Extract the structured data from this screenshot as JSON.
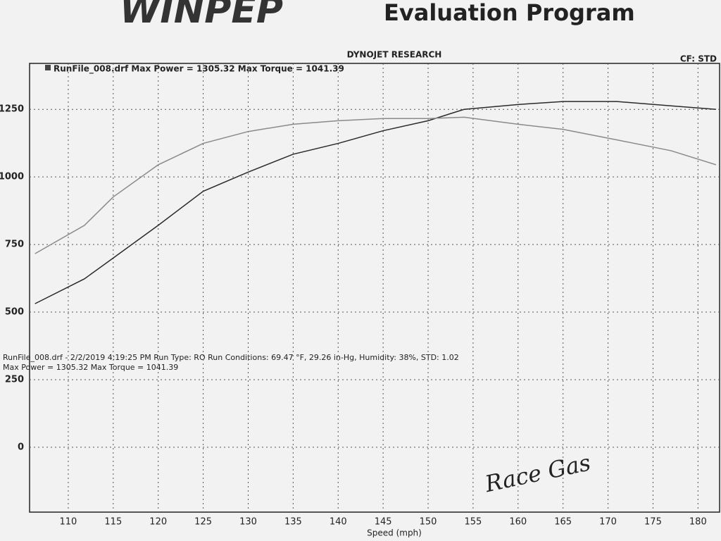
{
  "chart_data": {
    "type": "line",
    "logo": "WINPEP",
    "title": "Evaluation Program",
    "subtitle": "DYNOJET RESEARCH",
    "correction": "CF: STD",
    "legend_text": "RunFile_008.drf Max Power = 1305.32    Max Torque = 1041.39",
    "run_info": [
      "RunFile_008.drf - 2/2/2019 4:19:25 PM  Run Type: RO  Run Conditions: 69.47 °F, 29.26 in-Hg,  Humidity:  38%, STD: 1.02",
      "Max Power = 1305.32  Max Torque = 1041.39"
    ],
    "x_label": "Speed (mph)",
    "annotation": "Race Gas",
    "x": [
      106.3,
      111.8,
      115,
      120,
      125,
      130,
      135,
      140,
      145,
      150,
      154,
      160,
      165,
      171,
      177,
      182
    ],
    "series": [
      {
        "color": "#2a2a2a",
        "values": [
          531,
          623,
          700,
          821,
          947,
          1018,
          1084,
          1124,
          1171,
          1208,
          1250,
          1268,
          1279,
          1279,
          1263,
          1250
        ]
      },
      {
        "color": "#8a8a8a",
        "values": [
          716,
          821,
          926,
          1045,
          1124,
          1168,
          1195,
          1208,
          1216,
          1216,
          1221,
          1195,
          1176,
          1137,
          1097,
          1045
        ]
      }
    ],
    "xlim": [
      105.7,
      182.4
    ],
    "xticks": [
      110,
      115,
      120,
      125,
      130,
      135,
      140,
      145,
      150,
      155,
      160,
      165,
      170,
      175,
      180
    ],
    "ylim": [
      -240,
      1420
    ],
    "yticks": [
      0,
      250,
      500,
      750,
      1000,
      1250
    ],
    "grid": true
  }
}
